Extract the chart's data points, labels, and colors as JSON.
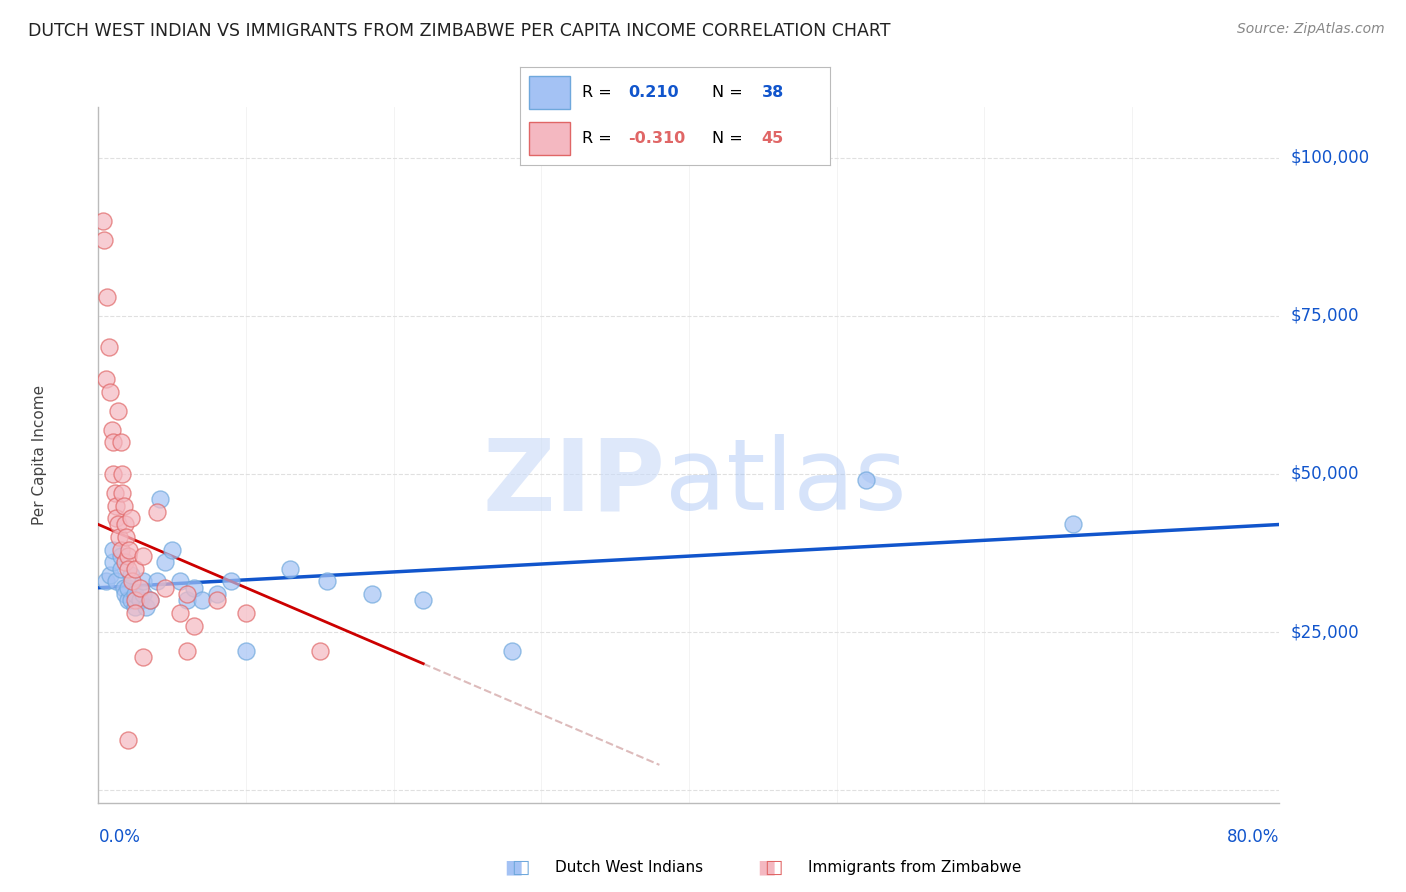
{
  "title": "DUTCH WEST INDIAN VS IMMIGRANTS FROM ZIMBABWE PER CAPITA INCOME CORRELATION CHART",
  "source": "Source: ZipAtlas.com",
  "ylabel": "Per Capita Income",
  "yticks": [
    0,
    25000,
    50000,
    75000,
    100000
  ],
  "ytick_labels": [
    "",
    "$25,000",
    "$50,000",
    "$75,000",
    "$100,000"
  ],
  "ymax": 108000,
  "ymin": -2000,
  "xmax": 0.8,
  "xmin": 0.0,
  "r_blue": "0.210",
  "n_blue": "38",
  "r_pink": "-0.310",
  "n_pink": "45",
  "blue_scatter_color": "#a4c2f4",
  "blue_scatter_edge": "#6fa8dc",
  "pink_scatter_color": "#f4b8c1",
  "pink_scatter_edge": "#e06666",
  "blue_line_color": "#1155cc",
  "pink_line_color": "#cc0000",
  "pink_dash_color": "#e06666",
  "grid_color": "#e0e0e0",
  "title_color": "#222222",
  "source_color": "#888888",
  "tick_color": "#1155cc",
  "legend_label_blue": "Dutch West Indians",
  "legend_label_pink": "Immigrants from Zimbabwe",
  "blue_x": [
    0.005,
    0.008,
    0.01,
    0.01,
    0.012,
    0.015,
    0.015,
    0.017,
    0.018,
    0.02,
    0.02,
    0.022,
    0.022,
    0.025,
    0.025,
    0.028,
    0.03,
    0.03,
    0.032,
    0.035,
    0.04,
    0.042,
    0.045,
    0.05,
    0.055,
    0.06,
    0.065,
    0.07,
    0.08,
    0.09,
    0.1,
    0.13,
    0.155,
    0.185,
    0.22,
    0.28,
    0.52,
    0.66
  ],
  "blue_y": [
    33000,
    34000,
    36000,
    38000,
    33000,
    35000,
    37000,
    32000,
    31000,
    30000,
    32000,
    30000,
    34000,
    29000,
    31000,
    30000,
    31000,
    33000,
    29000,
    30000,
    33000,
    46000,
    36000,
    38000,
    33000,
    30000,
    32000,
    30000,
    31000,
    33000,
    22000,
    35000,
    33000,
    31000,
    30000,
    22000,
    49000,
    42000
  ],
  "pink_x": [
    0.003,
    0.004,
    0.005,
    0.006,
    0.007,
    0.008,
    0.009,
    0.01,
    0.01,
    0.011,
    0.012,
    0.012,
    0.013,
    0.013,
    0.014,
    0.015,
    0.015,
    0.016,
    0.016,
    0.017,
    0.018,
    0.018,
    0.019,
    0.02,
    0.02,
    0.021,
    0.022,
    0.023,
    0.025,
    0.025,
    0.028,
    0.03,
    0.035,
    0.04,
    0.045,
    0.055,
    0.06,
    0.065,
    0.08,
    0.1,
    0.15,
    0.06,
    0.025,
    0.03,
    0.02
  ],
  "pink_y": [
    90000,
    87000,
    65000,
    78000,
    70000,
    63000,
    57000,
    55000,
    50000,
    47000,
    45000,
    43000,
    42000,
    60000,
    40000,
    55000,
    38000,
    50000,
    47000,
    45000,
    42000,
    36000,
    40000,
    37000,
    35000,
    38000,
    43000,
    33000,
    30000,
    35000,
    32000,
    37000,
    30000,
    44000,
    32000,
    28000,
    31000,
    26000,
    30000,
    28000,
    22000,
    22000,
    28000,
    21000,
    8000
  ]
}
